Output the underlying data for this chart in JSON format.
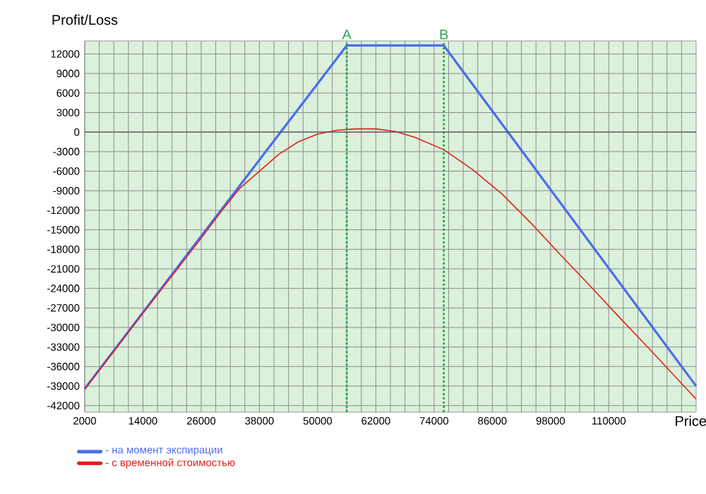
{
  "chart_data": {
    "type": "line",
    "xlabel": "Price",
    "ylabel": "Profit/Loss",
    "xlim": [
      2000,
      128000
    ],
    "ylim": [
      -43000,
      14000
    ],
    "xticks": [
      2000,
      {
        "value": 5000,
        "label": null
      },
      {
        "value": 8000,
        "label": null
      },
      {
        "value": 11000,
        "label": null
      },
      14000,
      {
        "value": 17000,
        "label": null
      },
      {
        "value": 20000,
        "label": null
      },
      {
        "value": 23000,
        "label": null
      },
      26000,
      {
        "value": 29000,
        "label": null
      },
      {
        "value": 32000,
        "label": null
      },
      {
        "value": 35000,
        "label": null
      },
      38000,
      {
        "value": 41000,
        "label": null
      },
      {
        "value": 44000,
        "label": null
      },
      {
        "value": 47000,
        "label": null
      },
      50000,
      {
        "value": 53000,
        "label": null
      },
      {
        "value": 56000,
        "label": null
      },
      {
        "value": 59000,
        "label": null
      },
      62000,
      {
        "value": 65000,
        "label": null
      },
      {
        "value": 68000,
        "label": null
      },
      {
        "value": 71000,
        "label": null
      },
      74000,
      {
        "value": 77000,
        "label": null
      },
      {
        "value": 80000,
        "label": null
      },
      {
        "value": 83000,
        "label": null
      },
      86000,
      {
        "value": 89000,
        "label": null
      },
      {
        "value": 92000,
        "label": null
      },
      {
        "value": 95000,
        "label": null
      },
      98000,
      {
        "value": 101000,
        "label": null
      },
      {
        "value": 104000,
        "label": null
      },
      {
        "value": 107000,
        "label": null
      },
      110000,
      {
        "value": 113000,
        "label": null
      },
      {
        "value": 116000,
        "label": null
      },
      {
        "value": 119000,
        "label": null
      },
      {
        "value": 122000,
        "label": null
      },
      {
        "value": 125000,
        "label": null
      }
    ],
    "yticks": [
      -42000,
      -39000,
      -36000,
      -33000,
      -30000,
      -27000,
      -24000,
      -21000,
      -18000,
      -15000,
      -12000,
      -9000,
      -6000,
      -3000,
      0,
      3000,
      6000,
      9000,
      12000
    ],
    "grid": true,
    "legend": "bottom left",
    "marker": "none",
    "line_style": "solid",
    "ref_lines": [
      {
        "axis": "x",
        "value": 56000,
        "label": "A",
        "color": "#22aa44",
        "line_style": "dotted"
      },
      {
        "axis": "x",
        "value": 76000,
        "label": "B",
        "color": "#22aa44",
        "line_style": "dotted"
      },
      {
        "axis": "y",
        "value": 0,
        "color": "#555555",
        "line_style": "solid"
      }
    ],
    "series": [
      {
        "name": "- на момент экспирации",
        "color": "#4a6cf0",
        "x": [
          2000,
          56000,
          76000,
          128000
        ],
        "values": [
          -39400,
          13300,
          13300,
          -39000
        ]
      },
      {
        "name": "- с временной стоимостью",
        "color": "#e0201c",
        "x": [
          2000,
          14000,
          26000,
          30000,
          34000,
          38000,
          42000,
          46000,
          50000,
          54000,
          58000,
          62000,
          66000,
          70000,
          76000,
          82000,
          88000,
          94000,
          100000,
          106000,
          112000,
          118000,
          124000,
          128000
        ],
        "values": [
          -39500,
          -27800,
          -16300,
          -12300,
          -8600,
          -6000,
          -3400,
          -1500,
          -300,
          300,
          500,
          500,
          100,
          -800,
          -2700,
          -5800,
          -9500,
          -14000,
          -18800,
          -23500,
          -28300,
          -33000,
          -37800,
          -41000
        ]
      }
    ]
  }
}
